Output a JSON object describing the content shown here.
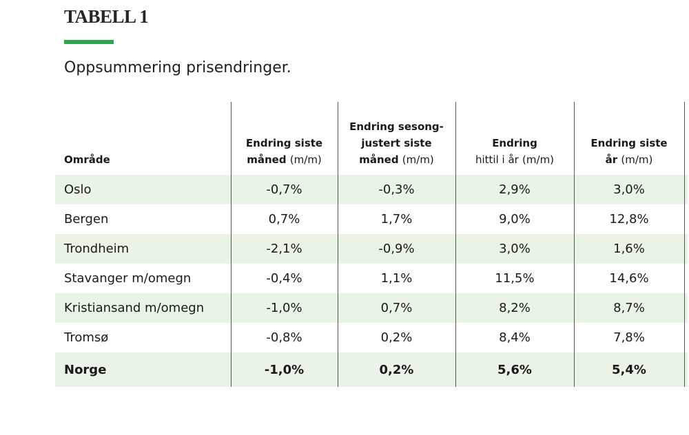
{
  "title": "TABELL 1",
  "subtitle": "Oppsummering prisendringer.",
  "colors": {
    "accent": "#2fa34f",
    "row_shade": "#e9f3e6"
  },
  "table": {
    "headers": {
      "area": "Område",
      "col1_line1": "Endring siste",
      "col1_line2": "måned",
      "col1_unit": "(m/m)",
      "col2_line1": "Endring sesong-",
      "col2_line2": "justert siste",
      "col2_line3": "måned",
      "col2_unit": "(m/m)",
      "col3_line1": "Endring",
      "col3_line2": "hittil i år",
      "col3_unit": "(m/m)",
      "col4_line1": "Endring siste",
      "col4_line2": "år",
      "col4_unit": "(m/m)"
    },
    "rows": [
      {
        "area": "Oslo",
        "month": "-0,7%",
        "seasonal": "-0,3%",
        "ytd": "2,9%",
        "year": "3,0%"
      },
      {
        "area": "Bergen",
        "month": "0,7%",
        "seasonal": "1,7%",
        "ytd": "9,0%",
        "year": "12,8%"
      },
      {
        "area": "Trondheim",
        "month": "-2,1%",
        "seasonal": "-0,9%",
        "ytd": "3,0%",
        "year": "1,6%"
      },
      {
        "area": "Stavanger m/omegn",
        "month": "-0,4%",
        "seasonal": "1,1%",
        "ytd": "11,5%",
        "year": "14,6%"
      },
      {
        "area": "Kristiansand m/omegn",
        "month": "-1,0%",
        "seasonal": "0,7%",
        "ytd": "8,2%",
        "year": "8,7%"
      },
      {
        "area": "Tromsø",
        "month": "-0,8%",
        "seasonal": "0,2%",
        "ytd": "8,4%",
        "year": "7,8%"
      },
      {
        "area": "Norge",
        "month": "-1,0%",
        "seasonal": "0,2%",
        "ytd": "5,6%",
        "year": "5,4%"
      }
    ]
  }
}
